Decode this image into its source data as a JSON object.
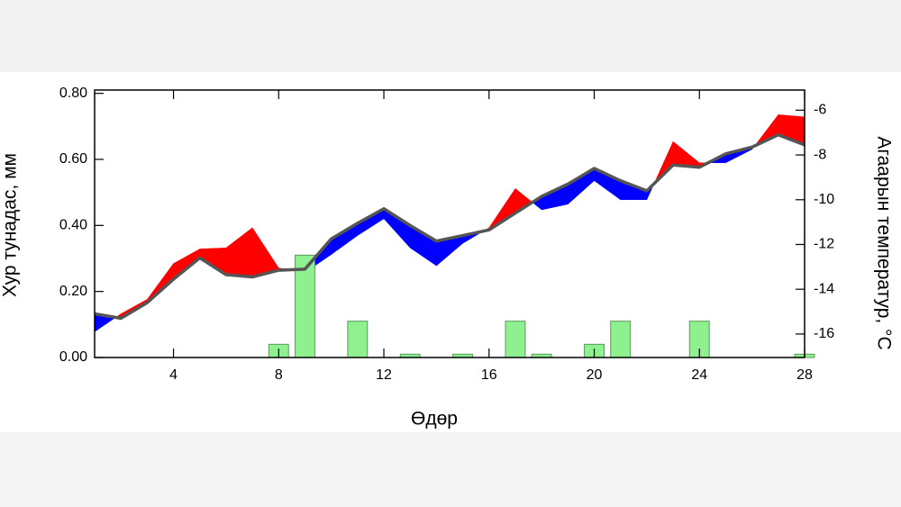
{
  "chart_data": {
    "type": "bar_line_band",
    "xlabel": "Өдөр",
    "ylabel": "Хур тунадас, мм",
    "y2label": "Агаарын температур, °С",
    "xlim": [
      1,
      28
    ],
    "xticks": [
      4,
      8,
      12,
      16,
      20,
      24,
      28
    ],
    "ylim": [
      0,
      0.81
    ],
    "yticks": [
      {
        "value": 0,
        "label": "0.00"
      },
      {
        "value": 0.2,
        "label": "0.20"
      },
      {
        "value": 0.4,
        "label": "0.40"
      },
      {
        "value": 0.6,
        "label": "0.60"
      },
      {
        "value": 0.8,
        "label": "0.80"
      }
    ],
    "y2lim": [
      -17.05,
      -5.1
    ],
    "y2ticks": [
      -6,
      -8,
      -10,
      -12,
      -14,
      -16
    ],
    "fill_above_color": "#ff0000",
    "fill_below_color": "#0000ff",
    "series": [
      {
        "type": "bar",
        "color": "#8ef08e",
        "x": [
          8,
          9,
          11,
          13,
          15,
          17,
          18,
          20,
          21,
          24,
          28
        ],
        "values": [
          0.04,
          0.31,
          0.11,
          0.01,
          0.01,
          0.11,
          0.01,
          0.04,
          0.11,
          0.11,
          0.01
        ]
      },
      {
        "type": "line",
        "axis": "y2",
        "color": "#555555",
        "x": [
          1,
          2,
          3,
          4,
          5,
          6,
          7,
          8,
          9,
          10,
          11,
          12,
          13,
          14,
          15,
          16,
          17,
          18,
          19,
          20,
          21,
          22,
          23,
          24,
          25,
          26,
          27,
          28
        ],
        "values": [
          -15.1,
          -15.3,
          -14.6,
          -13.55,
          -12.6,
          -13.35,
          -13.45,
          -13.15,
          -13.1,
          -11.75,
          -11.05,
          -10.4,
          -11.15,
          -11.85,
          -11.6,
          -11.35,
          -10.6,
          -9.85,
          -9.3,
          -8.6,
          -9.15,
          -9.6,
          -8.45,
          -8.55,
          -7.95,
          -7.65,
          -7.1,
          -7.55
        ]
      },
      {
        "type": "band",
        "axis": "y2",
        "x": [
          1,
          2,
          3,
          4,
          5,
          6,
          7,
          8,
          9,
          10,
          11,
          12,
          13,
          14,
          15,
          16,
          17,
          18,
          19,
          20,
          21,
          22,
          23,
          24,
          25,
          26,
          27,
          28
        ],
        "values": [
          -15.9,
          -15.1,
          -14.45,
          -12.85,
          -12.2,
          -12.15,
          -11.25,
          -13.05,
          -13.25,
          -12.45,
          -11.6,
          -10.85,
          -12.15,
          -12.95,
          -11.95,
          -11.25,
          -9.5,
          -10.45,
          -10.2,
          -9.15,
          -10.0,
          -10.0,
          -7.4,
          -8.35,
          -8.35,
          -7.75,
          -6.2,
          -6.3
        ]
      }
    ]
  }
}
